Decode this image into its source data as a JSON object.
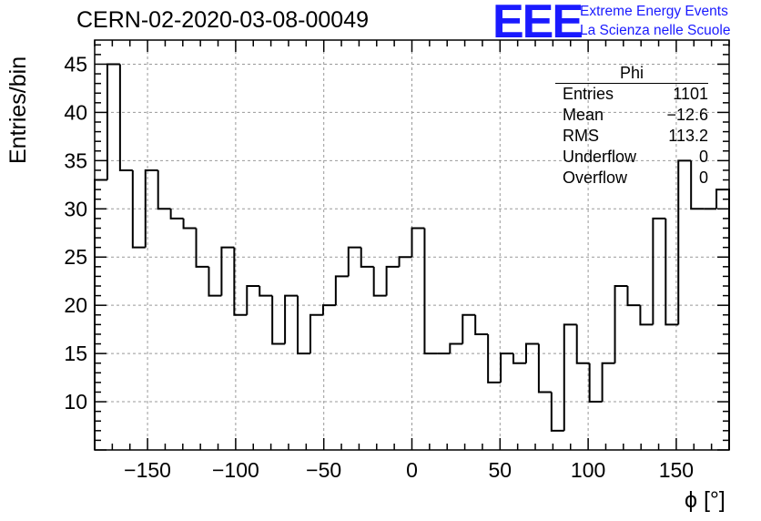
{
  "header": {
    "title": "CERN-02-2020-03-08-00049",
    "logo_text": "EEE",
    "logo_line1": "Extreme Energy Events",
    "logo_line2": "La Scienza nelle Scuole"
  },
  "stats_box": {
    "title": "Phi",
    "rows": [
      {
        "label": "Entries",
        "value": "1101"
      },
      {
        "label": "Mean",
        "value": "−12.6"
      },
      {
        "label": "RMS",
        "value": "113.2"
      },
      {
        "label": "Underflow",
        "value": "0"
      },
      {
        "label": "Overflow",
        "value": "0"
      }
    ]
  },
  "colors": {
    "line": "#000000",
    "grid": "#999999",
    "logo": "#1a1aff"
  },
  "chart_data": {
    "type": "bar",
    "style": "step-histogram",
    "title": "CERN-02-2020-03-08-00049",
    "xlabel": "ϕ [°]",
    "ylabel": "Entries/bin",
    "xlim": [
      -180,
      180
    ],
    "ylim": [
      5,
      47.5
    ],
    "bin_width": 7.2,
    "x_ticks": [
      -150,
      -100,
      -50,
      0,
      50,
      100,
      150
    ],
    "y_ticks": [
      10,
      15,
      20,
      25,
      30,
      35,
      40,
      45
    ],
    "grid": true,
    "values": [
      33,
      45,
      34,
      26,
      34,
      30,
      29,
      28,
      24,
      21,
      26,
      19,
      22,
      21,
      16,
      21,
      15,
      19,
      20,
      23,
      26,
      24,
      21,
      24,
      25,
      28,
      15,
      15,
      16,
      19,
      17,
      12,
      15,
      14,
      16,
      11,
      7,
      18,
      14,
      10,
      14,
      22,
      20,
      18,
      29,
      18,
      35,
      30,
      30,
      32
    ]
  }
}
